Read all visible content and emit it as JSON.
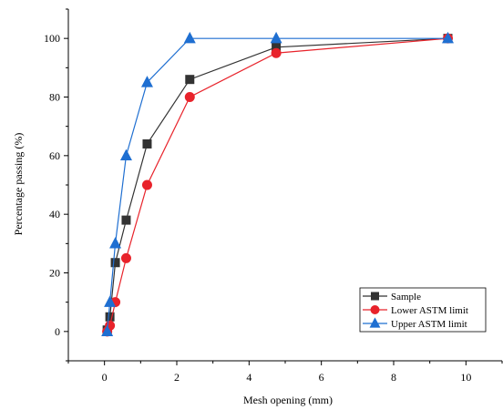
{
  "chart_data": {
    "type": "line",
    "title": "",
    "xlabel": "Mesh opening (mm)",
    "ylabel": "Percentage passing (%)",
    "xlim": [
      -1,
      11
    ],
    "ylim": [
      -10,
      110
    ],
    "xticks": [
      0,
      2,
      4,
      6,
      8,
      10
    ],
    "yticks": [
      0,
      20,
      40,
      60,
      80,
      100
    ],
    "grid": false,
    "legend_position": "bottom-right",
    "series": [
      {
        "name": "Sample",
        "color": "#333333",
        "marker": "square",
        "x": [
          0.075,
          0.15,
          0.3,
          0.6,
          1.18,
          2.36,
          4.75,
          9.5
        ],
        "y": [
          0.5,
          5,
          23.5,
          38,
          64,
          86,
          97,
          100
        ]
      },
      {
        "name": "Lower ASTM limit",
        "color": "#e8232b",
        "marker": "circle",
        "x": [
          0.075,
          0.15,
          0.3,
          0.6,
          1.18,
          2.36,
          4.75,
          9.5
        ],
        "y": [
          0,
          2,
          10,
          25,
          50,
          80,
          95,
          100
        ]
      },
      {
        "name": "Upper ASTM limit",
        "color": "#1f6fd1",
        "marker": "triangle",
        "x": [
          0.075,
          0.15,
          0.3,
          0.6,
          1.18,
          2.36,
          4.75,
          9.5
        ],
        "y": [
          0,
          10,
          30,
          60,
          85,
          100,
          100,
          100
        ]
      }
    ]
  }
}
